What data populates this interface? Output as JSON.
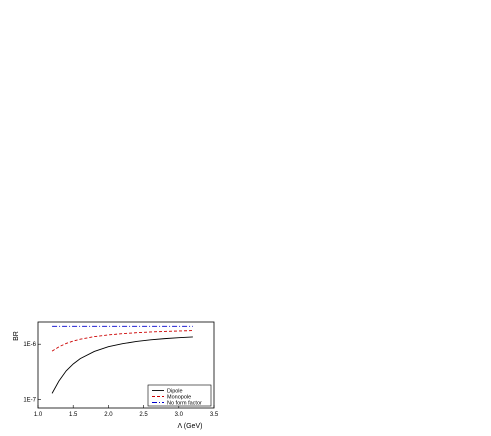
{
  "chart_data": {
    "type": "line",
    "xlabel": "Λ (GeV)",
    "ylabel": "BR",
    "xlim": [
      1.0,
      3.5
    ],
    "ylim_log10": [
      -7.15,
      -5.6
    ],
    "yscale": "log",
    "x_ticks": [
      "1.0",
      "1.5",
      "2.0",
      "2.5",
      "3.0",
      "3.5"
    ],
    "y_ticks": [
      {
        "label": "1E-6",
        "value": 1e-06
      },
      {
        "label": "1E-7",
        "value": 1e-07
      }
    ],
    "x": [
      1.2,
      1.3,
      1.4,
      1.5,
      1.6,
      1.8,
      2.0,
      2.2,
      2.4,
      2.6,
      2.8,
      3.0,
      3.2
    ],
    "series": [
      {
        "name": "Dipole",
        "color": "#000000",
        "dash": "solid",
        "values": [
          1.3e-07,
          2.2e-07,
          3.3e-07,
          4.4e-07,
          5.5e-07,
          7.4e-07,
          9e-07,
          1.02e-06,
          1.12e-06,
          1.2e-06,
          1.26e-06,
          1.31e-06,
          1.35e-06
        ]
      },
      {
        "name": "Monopole",
        "color": "#cc0000",
        "dash": "dashed",
        "values": [
          7.5e-07,
          9e-07,
          1.03e-06,
          1.14e-06,
          1.23e-06,
          1.37e-06,
          1.47e-06,
          1.55e-06,
          1.61e-06,
          1.66e-06,
          1.7e-06,
          1.73e-06,
          1.76e-06
        ]
      },
      {
        "name": "No form factor",
        "color": "#0000cc",
        "dash": "dashdot",
        "values": [
          2.1e-06,
          2.1e-06,
          2.1e-06,
          2.1e-06,
          2.1e-06,
          2.1e-06,
          2.1e-06,
          2.1e-06,
          2.1e-06,
          2.1e-06,
          2.1e-06,
          2.1e-06,
          2.1e-06
        ]
      }
    ],
    "legend_position": "bottom-right"
  }
}
